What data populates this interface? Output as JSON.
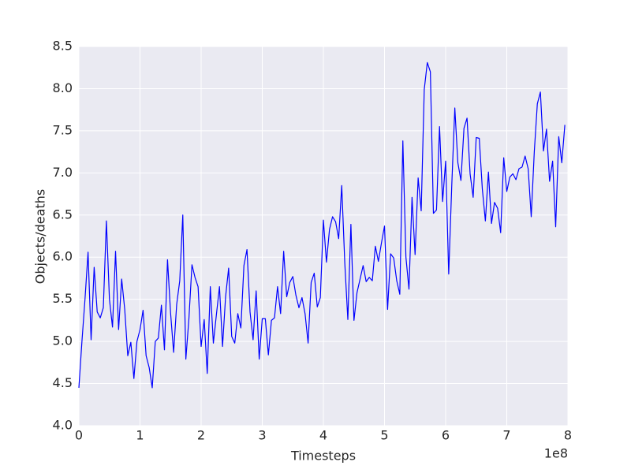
{
  "chart_data": {
    "type": "line",
    "x_label": "Timesteps",
    "y_label": "Objects/deaths",
    "x_offset_label": "1e8",
    "color": "#0000ff",
    "background": "#eaeaf2",
    "grid": true,
    "xlim": [
      0,
      8
    ],
    "ylim": [
      4,
      8.5
    ],
    "xticks": [
      0,
      1,
      2,
      3,
      4,
      5,
      6,
      7,
      8
    ],
    "yticks": [
      {
        "value": 4,
        "label": "4.0"
      },
      4.5,
      {
        "value": 5,
        "label": "5.0"
      },
      5.5,
      {
        "value": 6,
        "label": "6.0"
      },
      6.5,
      {
        "value": 7,
        "label": "7.0"
      },
      7.5,
      {
        "value": 8,
        "label": "8.0"
      },
      8.5
    ],
    "x": [
      0,
      0.05,
      0.1,
      0.15,
      0.2,
      0.25,
      0.3,
      0.35,
      0.4,
      0.45,
      0.5,
      0.55,
      0.6,
      0.65,
      0.7,
      0.75,
      0.8,
      0.85,
      0.9,
      0.95,
      1,
      1.05,
      1.1,
      1.15,
      1.2,
      1.25,
      1.3,
      1.35,
      1.4,
      1.45,
      1.5,
      1.55,
      1.6,
      1.65,
      1.7,
      1.75,
      1.8,
      1.85,
      1.9,
      1.95,
      2,
      2.05,
      2.1,
      2.15,
      2.2,
      2.25,
      2.3,
      2.35,
      2.4,
      2.45,
      2.5,
      2.55,
      2.6,
      2.65,
      2.7,
      2.75,
      2.8,
      2.85,
      2.9,
      2.95,
      3,
      3.05,
      3.1,
      3.15,
      3.2,
      3.25,
      3.3,
      3.35,
      3.4,
      3.45,
      3.5,
      3.55,
      3.6,
      3.65,
      3.7,
      3.75,
      3.8,
      3.85,
      3.9,
      3.95,
      4,
      4.05,
      4.1,
      4.15,
      4.2,
      4.25,
      4.3,
      4.35,
      4.4,
      4.45,
      4.5,
      4.55,
      4.6,
      4.65,
      4.7,
      4.75,
      4.8,
      4.85,
      4.9,
      4.95,
      5,
      5.05,
      5.1,
      5.15,
      5.2,
      5.25,
      5.3,
      5.35,
      5.4,
      5.45,
      5.5,
      5.55,
      5.6,
      5.65,
      5.7,
      5.75,
      5.8,
      5.85,
      5.9,
      5.95,
      6,
      6.05,
      6.1,
      6.15,
      6.2,
      6.25,
      6.3,
      6.35,
      6.4,
      6.45,
      6.5,
      6.55,
      6.6,
      6.65,
      6.7,
      6.75,
      6.8,
      6.85,
      6.9,
      6.95,
      7,
      7.05,
      7.1,
      7.15,
      7.2,
      7.25,
      7.3,
      7.35,
      7.4,
      7.45,
      7.5,
      7.55,
      7.6,
      7.65,
      7.7,
      7.75,
      7.8,
      7.85,
      7.9,
      7.95
    ],
    "values": [
      4.45,
      5.0,
      5.5,
      6.06,
      5.02,
      5.88,
      5.35,
      5.28,
      5.4,
      6.43,
      5.5,
      5.17,
      6.07,
      5.14,
      5.74,
      5.38,
      4.83,
      4.99,
      4.56,
      5.0,
      5.14,
      5.37,
      4.83,
      4.69,
      4.45,
      5.0,
      5.04,
      5.43,
      4.9,
      5.97,
      5.34,
      4.87,
      5.44,
      5.72,
      6.5,
      4.79,
      5.27,
      5.91,
      5.76,
      5.65,
      4.94,
      5.26,
      4.62,
      5.65,
      4.98,
      5.32,
      5.65,
      4.94,
      5.53,
      5.87,
      5.06,
      4.98,
      5.33,
      5.16,
      5.9,
      6.09,
      5.35,
      5.02,
      5.6,
      4.79,
      5.27,
      5.27,
      4.84,
      5.25,
      5.28,
      5.65,
      5.33,
      6.07,
      5.53,
      5.7,
      5.77,
      5.55,
      5.4,
      5.52,
      5.33,
      4.98,
      5.7,
      5.81,
      5.41,
      5.52,
      6.44,
      5.94,
      6.33,
      6.48,
      6.42,
      6.22,
      6.85,
      5.93,
      5.26,
      6.39,
      5.25,
      5.58,
      5.74,
      5.9,
      5.71,
      5.76,
      5.72,
      6.13,
      5.95,
      6.17,
      6.37,
      5.38,
      6.04,
      5.99,
      5.72,
      5.56,
      7.38,
      6.0,
      5.62,
      6.71,
      6.03,
      6.94,
      6.55,
      7.99,
      8.31,
      8.2,
      6.52,
      6.56,
      7.55,
      6.66,
      7.14,
      5.8,
      6.85,
      7.77,
      7.12,
      6.91,
      7.53,
      7.65,
      6.99,
      6.71,
      7.42,
      7.41,
      6.81,
      6.43,
      7.01,
      6.4,
      6.65,
      6.58,
      6.29,
      7.18,
      6.78,
      6.95,
      6.99,
      6.92,
      7.05,
      7.07,
      7.2,
      7.05,
      6.48,
      7.25,
      7.82,
      7.96,
      7.26,
      7.52,
      6.9,
      7.14,
      6.36,
      7.43,
      7.12,
      7.57
    ]
  }
}
